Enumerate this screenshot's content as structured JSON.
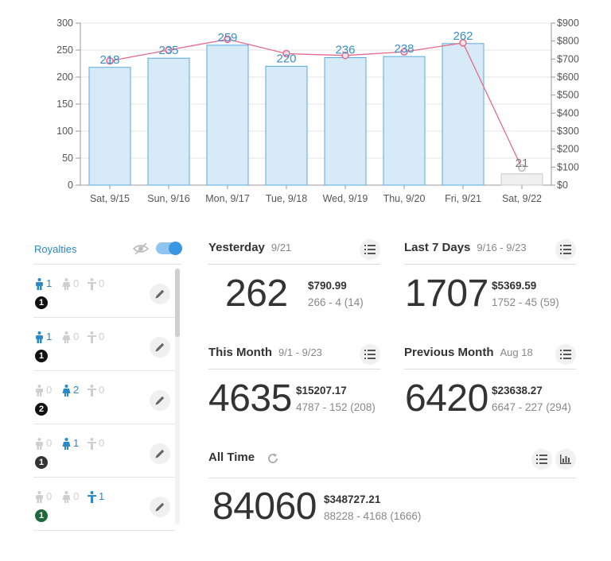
{
  "chart_data": {
    "type": "bar",
    "categories": [
      "Sat, 9/15",
      "Sun, 9/16",
      "Mon, 9/17",
      "Tue, 9/18",
      "Wed, 9/19",
      "Thu, 9/20",
      "Fri, 9/21",
      "Sat, 9/22"
    ],
    "series": [
      {
        "name": "",
        "type": "bar",
        "values": [
          218,
          235,
          259,
          220,
          236,
          238,
          262,
          21
        ]
      },
      {
        "name": "",
        "type": "line",
        "axis": "right",
        "values": [
          690,
          750,
          810,
          730,
          720,
          740,
          790,
          95
        ]
      }
    ],
    "ylim": [
      0,
      300
    ],
    "yticks": [
      0,
      50,
      100,
      150,
      200,
      250,
      300
    ],
    "y2lim": [
      0,
      900
    ],
    "y2ticks": [
      "$0",
      "$100",
      "$200",
      "$300",
      "$400",
      "$500",
      "$600",
      "$700",
      "$800",
      "$900"
    ],
    "grid": true,
    "colors": {
      "bar": "#d6eaf8",
      "bar_stroke": "#5aa9dc",
      "bar_partial": "#f0f0f0",
      "bar_partial_stroke": "#c8c8c8",
      "line": "#e8698a",
      "label": "#3a8fc7"
    }
  },
  "royalties": {
    "title": "Royalties",
    "items": [
      {
        "counts": [
          "1",
          "0",
          "0"
        ],
        "active": 0,
        "badge": "1",
        "badge_color": "#111111"
      },
      {
        "counts": [
          "1",
          "0",
          "0"
        ],
        "active": 0,
        "badge": "1",
        "badge_color": "#111111"
      },
      {
        "counts": [
          "0",
          "2",
          "0"
        ],
        "active": 1,
        "badge": "2",
        "badge_color": "#111111"
      },
      {
        "counts": [
          "0",
          "1",
          "0"
        ],
        "active": 1,
        "badge": "1",
        "badge_color": "#333333"
      },
      {
        "counts": [
          "0",
          "0",
          "1"
        ],
        "active": 2,
        "badge": "1",
        "badge_color": "#1d6b3c"
      }
    ]
  },
  "stats": {
    "yesterday": {
      "title": "Yesterday",
      "range": "9/21",
      "value": "262",
      "money": "$790.99",
      "sub": "266 - 4  (14)"
    },
    "last7": {
      "title": "Last 7 Days",
      "range": "9/16 - 9/23",
      "value": "1707",
      "money": "$5369.59",
      "sub": "1752 - 45  (59)"
    },
    "month": {
      "title": "This Month",
      "range": "9/1 - 9/23",
      "value": "4635",
      "money": "$15207.17",
      "sub": "4787 - 152  (208)"
    },
    "prevmonth": {
      "title": "Previous Month",
      "range": "Aug 18",
      "value": "6420",
      "money": "$23638.27",
      "sub": "6647 - 227  (294)"
    },
    "alltime": {
      "title": "All Time",
      "value": "84060",
      "money": "$348727.21",
      "sub": "88228 - 4168  (1666)"
    }
  }
}
